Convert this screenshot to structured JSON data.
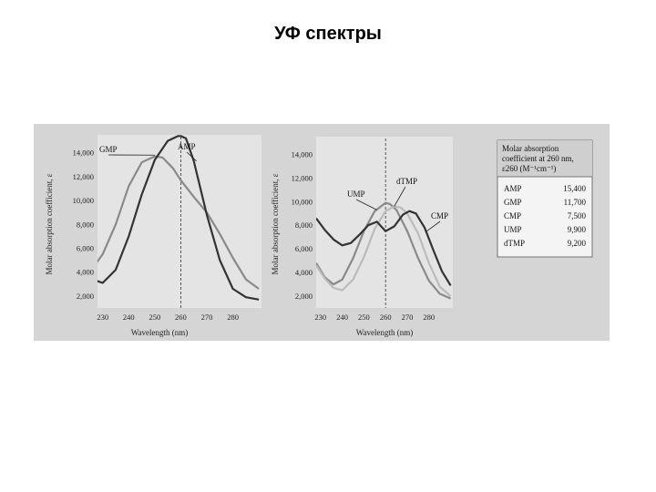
{
  "page": {
    "title": "УФ спектры"
  },
  "chart_data": [
    {
      "type": "line",
      "panel": "left",
      "xlabel": "Wavelength (nm)",
      "ylabel": "Molar absorption coefficient, ε",
      "x_ticks": [
        "230",
        "240",
        "250",
        "260",
        "270",
        "280"
      ],
      "y_ticks": [
        "2,000",
        "4,000",
        "6,000",
        "8,000",
        "10,000",
        "12,000",
        "14,000"
      ],
      "xlim": [
        228,
        291
      ],
      "ylim": [
        1000,
        15500
      ],
      "reference_line_x": 260,
      "series": [
        {
          "name": "GMP",
          "color": "#8a8a8a",
          "x": [
            226,
            230,
            235,
            240,
            245,
            250,
            253,
            257,
            260,
            265,
            270,
            275,
            280,
            285,
            290
          ],
          "y": [
            4300,
            5500,
            8000,
            11200,
            13200,
            13700,
            13600,
            12700,
            11700,
            10300,
            9000,
            7200,
            5200,
            3400,
            2600
          ]
        },
        {
          "name": "AMP",
          "color": "#333333",
          "x": [
            226,
            230,
            235,
            240,
            245,
            250,
            255,
            259,
            260,
            262,
            265,
            270,
            275,
            280,
            285,
            290
          ],
          "y": [
            3400,
            3100,
            4200,
            7000,
            10500,
            13400,
            15000,
            15400,
            15400,
            15200,
            13300,
            8800,
            5000,
            2600,
            1900,
            1700
          ]
        }
      ]
    },
    {
      "type": "line",
      "panel": "right",
      "xlabel": "Wavelength (nm)",
      "ylabel": "Molar absorption coefficient, ε",
      "x_ticks": [
        "230",
        "240",
        "250",
        "260",
        "270",
        "280"
      ],
      "y_ticks": [
        "2,000",
        "4,000",
        "6,000",
        "8,000",
        "10,000",
        "12,000",
        "14,000"
      ],
      "xlim": [
        228,
        291
      ],
      "ylim": [
        1000,
        15500
      ],
      "reference_line_x": 260,
      "series": [
        {
          "name": "UMP",
          "color": "#8a8a8a",
          "x": [
            228,
            232,
            236,
            240,
            245,
            250,
            255,
            260,
            262,
            265,
            270,
            275,
            280,
            285,
            290
          ],
          "y": [
            4800,
            3600,
            3000,
            3400,
            5200,
            7500,
            9200,
            9900,
            9800,
            9300,
            7500,
            5200,
            3300,
            2200,
            1800
          ]
        },
        {
          "name": "dTMP",
          "color": "#bbbbbb",
          "x": [
            228,
            232,
            236,
            240,
            245,
            250,
            255,
            260,
            264,
            267,
            270,
            275,
            280,
            285,
            290
          ],
          "y": [
            4600,
            3500,
            2700,
            2500,
            3400,
            5300,
            7700,
            9200,
            9600,
            9500,
            9000,
            7300,
            4800,
            2800,
            2000
          ]
        },
        {
          "name": "CMP",
          "color": "#333333",
          "x": [
            228,
            232,
            236,
            240,
            244,
            248,
            252,
            256,
            260,
            264,
            268,
            271,
            274,
            278,
            282,
            286,
            290
          ],
          "y": [
            8600,
            7600,
            6800,
            6300,
            6500,
            7200,
            8000,
            8300,
            7500,
            7900,
            8900,
            9200,
            9000,
            7800,
            5900,
            4100,
            2900
          ]
        }
      ]
    },
    {
      "type": "table",
      "title": "Molar absorption coefficient at 260 nm, ε260 (M⁻¹cm⁻¹)",
      "title_lines": [
        "Molar absorption",
        "coefficient at 260 nm,",
        "ε260 (M⁻¹cm⁻¹)"
      ],
      "rows": [
        {
          "label": "AMP",
          "value": "15,400"
        },
        {
          "label": "GMP",
          "value": "11,700"
        },
        {
          "label": "CMP",
          "value": "7,500"
        },
        {
          "label": "UMP",
          "value": "9,900"
        },
        {
          "label": "dTMP",
          "value": "9,200"
        }
      ]
    }
  ]
}
